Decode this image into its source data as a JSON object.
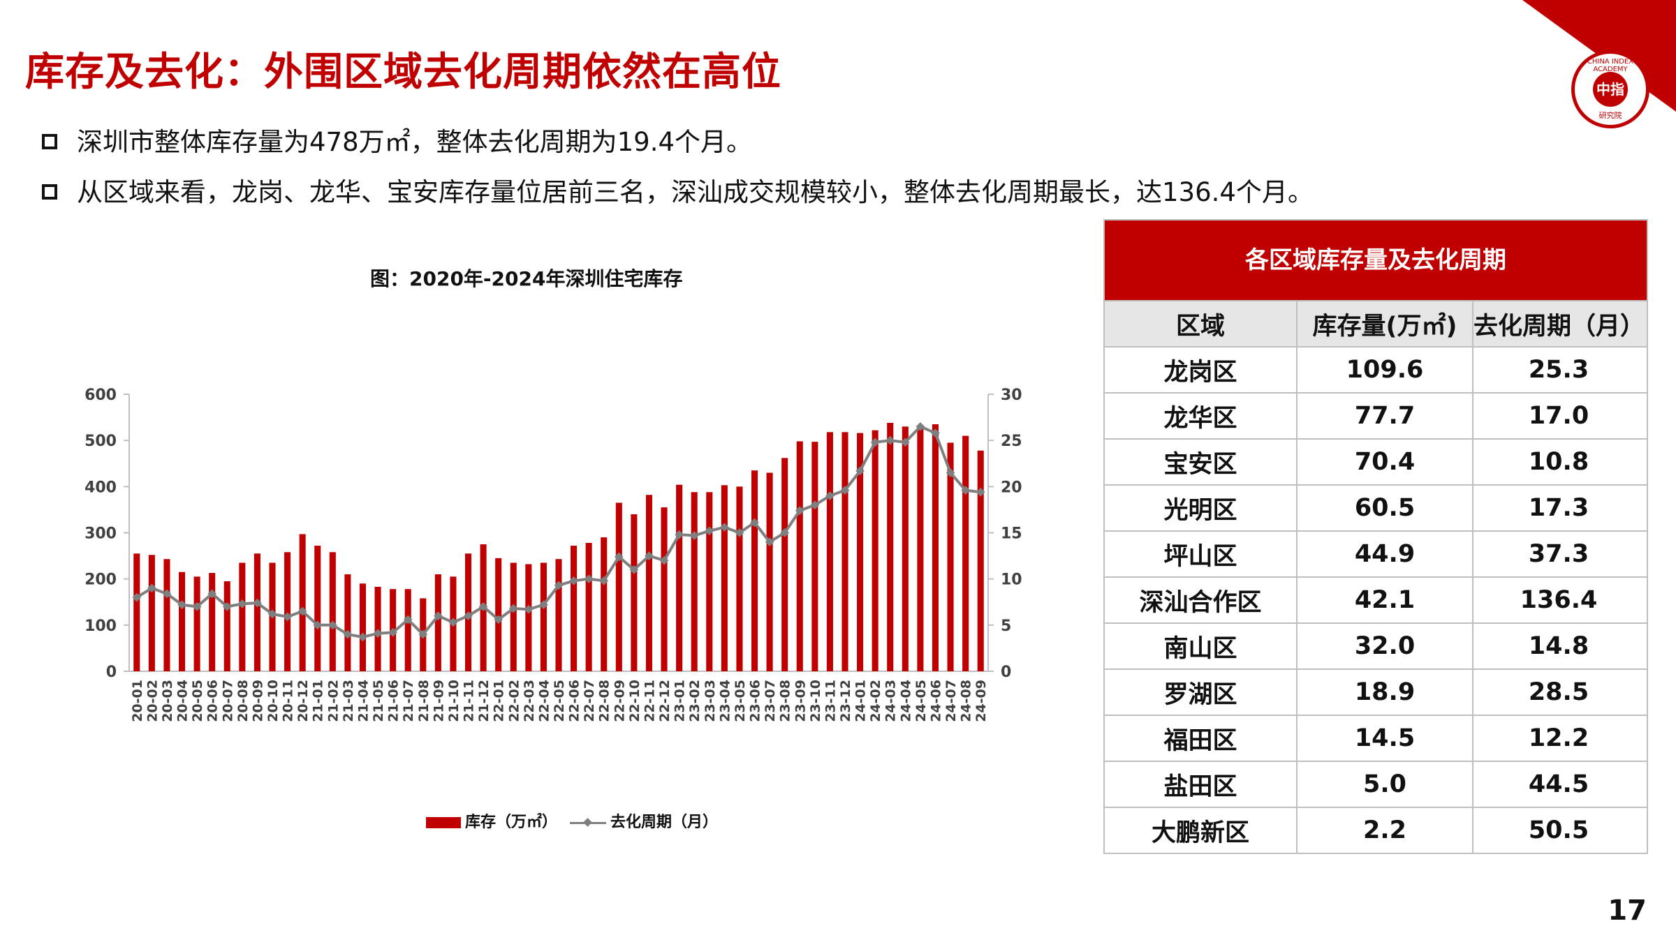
{
  "page": {
    "title": "库存及去化：外围区域去化周期依然在高位",
    "number": "17"
  },
  "bullets": [
    "深圳市整体库存量为478万㎡，整体去化周期为19.4个月。",
    "从区域来看，龙岗、龙华、宝安库存量位居前三名，深汕成交规模较小，整体去化周期最长，达136.4个月。"
  ],
  "logo": {
    "text": "中指",
    "ring": "CHINA INDEX ACADEMY",
    "sub": "研究院"
  },
  "chart_data": {
    "type": "bar",
    "title": "图：2020年-2024年深圳住宅库存",
    "categories": [
      "20-01",
      "20-02",
      "20-03",
      "20-04",
      "20-05",
      "20-06",
      "20-07",
      "20-08",
      "20-09",
      "20-10",
      "20-11",
      "20-12",
      "21-01",
      "21-02",
      "21-03",
      "21-04",
      "21-05",
      "21-06",
      "21-07",
      "21-08",
      "21-09",
      "21-10",
      "21-11",
      "21-12",
      "22-01",
      "22-02",
      "22-03",
      "22-04",
      "22-05",
      "22-06",
      "22-07",
      "22-08",
      "22-09",
      "22-10",
      "22-11",
      "22-12",
      "23-01",
      "23-02",
      "23-03",
      "23-04",
      "23-05",
      "23-06",
      "23-07",
      "23-08",
      "23-09",
      "23-10",
      "23-11",
      "23-12",
      "24-01",
      "24-02",
      "24-03",
      "24-04",
      "24-05",
      "24-06",
      "24-07",
      "24-08",
      "24-09"
    ],
    "series": [
      {
        "name": "库存（万㎡）",
        "type": "bar",
        "axis": "left",
        "color": "#c00000",
        "values": [
          255,
          252,
          243,
          215,
          205,
          213,
          195,
          235,
          255,
          235,
          258,
          297,
          272,
          258,
          210,
          190,
          183,
          178,
          178,
          158,
          210,
          205,
          255,
          275,
          245,
          235,
          232,
          235,
          243,
          272,
          278,
          290,
          365,
          340,
          382,
          355,
          404,
          388,
          388,
          403,
          400,
          435,
          430,
          462,
          498,
          497,
          518,
          518,
          516,
          522,
          538,
          530,
          528,
          535,
          495,
          510,
          478
        ]
      },
      {
        "name": "去化周期（月）",
        "type": "line",
        "axis": "right",
        "color": "#7f7f7f",
        "values": [
          8.0,
          9.0,
          8.4,
          7.2,
          7.0,
          8.4,
          7.0,
          7.3,
          7.4,
          6.2,
          5.9,
          6.5,
          5.0,
          5.0,
          4.0,
          3.7,
          4.1,
          4.2,
          5.6,
          4.0,
          6.0,
          5.3,
          6.0,
          7.0,
          5.6,
          6.8,
          6.7,
          7.2,
          9.3,
          9.8,
          10.0,
          9.8,
          12.4,
          11.0,
          12.5,
          12.0,
          14.8,
          14.7,
          15.2,
          15.6,
          15.0,
          16.1,
          14.0,
          15.0,
          17.4,
          18.0,
          19.0,
          19.6,
          21.7,
          24.8,
          25.0,
          24.8,
          26.5,
          25.8,
          21.5,
          19.6,
          19.4
        ]
      }
    ],
    "yleft": {
      "min": 0,
      "max": 600,
      "ticks": [
        0,
        100,
        200,
        300,
        400,
        500,
        600
      ]
    },
    "yright": {
      "min": 0,
      "max": 30,
      "ticks": [
        0,
        5,
        10,
        15,
        20,
        25,
        30
      ]
    },
    "legend": {
      "position": "bottom",
      "items": [
        "库存（万㎡）",
        "去化周期（月）"
      ]
    }
  },
  "table": {
    "title": "各区域库存量及去化周期",
    "headers": [
      "区域",
      "库存量(万㎡)",
      "去化周期（月）"
    ],
    "rows": [
      [
        "龙岗区",
        "109.6",
        "25.3"
      ],
      [
        "龙华区",
        "77.7",
        "17.0"
      ],
      [
        "宝安区",
        "70.4",
        "10.8"
      ],
      [
        "光明区",
        "60.5",
        "17.3"
      ],
      [
        "坪山区",
        "44.9",
        "37.3"
      ],
      [
        "深汕合作区",
        "42.1",
        "136.4"
      ],
      [
        "南山区",
        "32.0",
        "14.8"
      ],
      [
        "罗湖区",
        "18.9",
        "28.5"
      ],
      [
        "福田区",
        "14.5",
        "12.2"
      ],
      [
        "盐田区",
        "5.0",
        "44.5"
      ],
      [
        "大鹏新区",
        "2.2",
        "50.5"
      ]
    ]
  }
}
